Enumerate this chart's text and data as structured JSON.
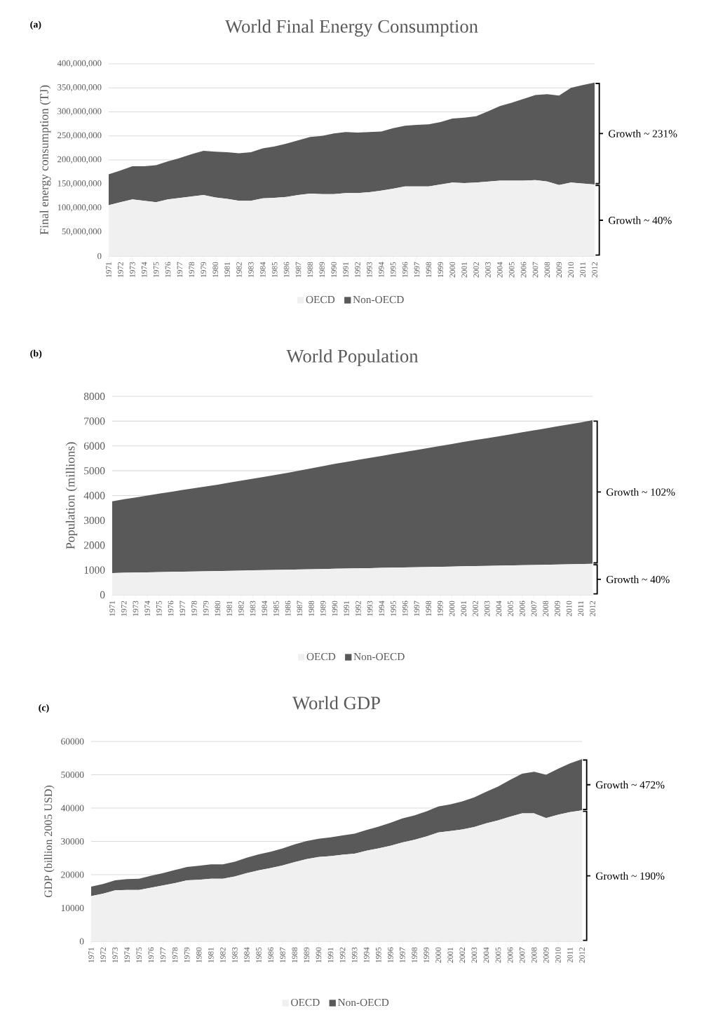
{
  "chart_data": [
    {
      "type": "area",
      "stacked": true,
      "title": "World Final Energy Consumption",
      "ylabel": "Final energy consumption (TJ)",
      "categories": [
        "1971",
        "1972",
        "1973",
        "1974",
        "1975",
        "1976",
        "1977",
        "1978",
        "1979",
        "1980",
        "1981",
        "1982",
        "1983",
        "1984",
        "1985",
        "1986",
        "1987",
        "1988",
        "1989",
        "1990",
        "1991",
        "1992",
        "1993",
        "1994",
        "1995",
        "1996",
        "1997",
        "1998",
        "1999",
        "2000",
        "2001",
        "2002",
        "2003",
        "2004",
        "2005",
        "2006",
        "2007",
        "2008",
        "2009",
        "2010",
        "2011",
        "2012"
      ],
      "series": [
        {
          "name": "OECD",
          "color": "#f0f0f0",
          "values": [
            106000000,
            112000000,
            118000000,
            115000000,
            112000000,
            118000000,
            121000000,
            124000000,
            127000000,
            122000000,
            119000000,
            115000000,
            115000000,
            120000000,
            121000000,
            123000000,
            127000000,
            130000000,
            129000000,
            129000000,
            131000000,
            131000000,
            133000000,
            136000000,
            140000000,
            145000000,
            145000000,
            145000000,
            149000000,
            153000000,
            152000000,
            153000000,
            155000000,
            157000000,
            157000000,
            157000000,
            158000000,
            155000000,
            148000000,
            153000000,
            151000000,
            149000000
          ]
        },
        {
          "name": "Non-OECD",
          "color": "#595959",
          "values": [
            64000000,
            66000000,
            69000000,
            72000000,
            77000000,
            79000000,
            83000000,
            88000000,
            92000000,
            95000000,
            97000000,
            99000000,
            101000000,
            104000000,
            107000000,
            111000000,
            114000000,
            118000000,
            121000000,
            126000000,
            127000000,
            126000000,
            125000000,
            123000000,
            126000000,
            126000000,
            128000000,
            129000000,
            130000000,
            133000000,
            136000000,
            138000000,
            146000000,
            155000000,
            162000000,
            170000000,
            177000000,
            182000000,
            186000000,
            197000000,
            205000000,
            212000000
          ]
        }
      ],
      "ylim": [
        0,
        400000000
      ],
      "yticks": [
        {
          "value": 0,
          "label": "0"
        },
        {
          "value": 50000000,
          "label": "50,000,000"
        },
        {
          "value": 100000000,
          "label": "100,000,000"
        },
        {
          "value": 150000000,
          "label": "150,000,000"
        },
        {
          "value": 200000000,
          "label": "200,000,000"
        },
        {
          "value": 250000000,
          "label": "250,000,000"
        },
        {
          "value": 300000000,
          "label": "300,000,000"
        },
        {
          "value": 350000000,
          "label": "350,000,000"
        },
        {
          "value": 400000000,
          "label": "400,000,000"
        }
      ],
      "grid": "y",
      "legend": "bottom",
      "annotations": [
        "(a)",
        "Growth ~ 231%",
        "Growth ~ 40%"
      ]
    },
    {
      "type": "area",
      "stacked": true,
      "title": "World Population",
      "ylabel": "Population (millions)",
      "categories": [
        "1971",
        "1972",
        "1973",
        "1974",
        "1975",
        "1976",
        "1977",
        "1978",
        "1979",
        "1980",
        "1981",
        "1982",
        "1983",
        "1984",
        "1985",
        "1986",
        "1987",
        "1988",
        "1989",
        "1990",
        "1991",
        "1992",
        "1993",
        "1994",
        "1995",
        "1996",
        "1997",
        "1998",
        "1999",
        "2000",
        "2001",
        "2002",
        "2003",
        "2004",
        "2005",
        "2006",
        "2007",
        "2008",
        "2009",
        "2010",
        "2011",
        "2012"
      ],
      "series": [
        {
          "name": "OECD",
          "color": "#f0f0f0",
          "values": [
            880,
            889,
            898,
            907,
            916,
            925,
            934,
            943,
            952,
            961,
            970,
            979,
            988,
            997,
            1006,
            1015,
            1024,
            1033,
            1042,
            1051,
            1060,
            1069,
            1078,
            1087,
            1096,
            1105,
            1114,
            1123,
            1132,
            1141,
            1150,
            1159,
            1168,
            1177,
            1186,
            1195,
            1204,
            1213,
            1222,
            1231,
            1240,
            1249
          ]
        },
        {
          "name": "Non-OECD",
          "color": "#595959",
          "values": [
            2890,
            2961,
            3027,
            3093,
            3159,
            3225,
            3291,
            3357,
            3418,
            3479,
            3550,
            3621,
            3692,
            3763,
            3834,
            3905,
            3986,
            4067,
            4148,
            4229,
            4300,
            4371,
            4442,
            4513,
            4584,
            4655,
            4726,
            4797,
            4868,
            4939,
            5010,
            5081,
            5142,
            5213,
            5284,
            5355,
            5426,
            5497,
            5568,
            5639,
            5710,
            5791
          ]
        }
      ],
      "ylim": [
        0,
        8000
      ],
      "yticks": [
        0,
        1000,
        2000,
        3000,
        4000,
        5000,
        6000,
        7000,
        8000
      ],
      "grid": "y",
      "legend": "bottom",
      "annotations": [
        "(b)",
        "Growth ~ 102%",
        "Growth ~ 40%"
      ]
    },
    {
      "type": "area",
      "stacked": true,
      "title": "World GDP",
      "ylabel": "GDP (billion 2005 USD)",
      "categories": [
        "1971",
        "1972",
        "1973",
        "1974",
        "1975",
        "1976",
        "1977",
        "1978",
        "1979",
        "1980",
        "1981",
        "1982",
        "1983",
        "1984",
        "1985",
        "1986",
        "1987",
        "1988",
        "1989",
        "1990",
        "1991",
        "1992",
        "1993",
        "1994",
        "1995",
        "1996",
        "1997",
        "1998",
        "1999",
        "2000",
        "2001",
        "2002",
        "2003",
        "2004",
        "2005",
        "2006",
        "2007",
        "2008",
        "2009",
        "2010",
        "2011",
        "2012"
      ],
      "series": [
        {
          "name": "OECD",
          "color": "#f0f0f0",
          "values": [
            13600,
            14300,
            15300,
            15400,
            15400,
            16100,
            16800,
            17500,
            18300,
            18500,
            18800,
            18800,
            19500,
            20500,
            21300,
            22000,
            22800,
            23800,
            24700,
            25300,
            25600,
            26000,
            26300,
            27200,
            27900,
            28700,
            29700,
            30500,
            31500,
            32700,
            33100,
            33600,
            34300,
            35400,
            36300,
            37400,
            38400,
            38400,
            37000,
            38000,
            38800,
            39300
          ]
        },
        {
          "name": "Non-OECD",
          "color": "#595959",
          "values": [
            2800,
            2900,
            3000,
            3300,
            3400,
            3600,
            3700,
            3900,
            4000,
            4200,
            4300,
            4300,
            4400,
            4600,
            4800,
            4900,
            5100,
            5300,
            5400,
            5500,
            5600,
            5800,
            6000,
            6200,
            6500,
            6900,
            7200,
            7300,
            7500,
            7800,
            8000,
            8400,
            8900,
            9500,
            10200,
            11100,
            11900,
            12500,
            13000,
            13800,
            14600,
            15400
          ]
        }
      ],
      "ylim": [
        0,
        60000
      ],
      "yticks": [
        0,
        10000,
        20000,
        30000,
        40000,
        50000,
        60000
      ],
      "grid": "y",
      "legend": "bottom",
      "annotations": [
        "(c)",
        "Growth ~ 472%",
        "Growth ~ 190%"
      ]
    }
  ]
}
